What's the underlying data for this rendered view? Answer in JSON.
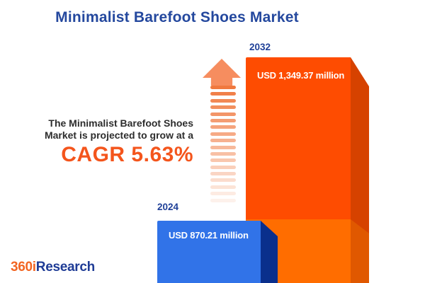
{
  "title": "Minimalist Barefoot Shoes Market",
  "annotation": {
    "line1": "The Minimalist Barefoot Shoes",
    "line2": "Market is projected to grow at a",
    "cagr": "CAGR 5.63%"
  },
  "chart_data": {
    "type": "bar",
    "title": "Minimalist Barefoot Shoes Market",
    "categories": [
      "2024",
      "2032"
    ],
    "values": [
      870.21,
      1349.37
    ],
    "unit": "USD million",
    "value_labels": [
      "USD 870.21 million",
      "USD 1,349.37 million"
    ],
    "cagr_percent": 5.63,
    "orientation": "vertical",
    "legend": "none",
    "axes": "none",
    "style": "3d-blocks",
    "bar_colors": [
      "#3173E8",
      "#FE4C01"
    ]
  },
  "logo": {
    "part1": "360i",
    "part2": "Research"
  },
  "icons": {
    "growth_arrow": "up-arrow-with-fading-stripes"
  },
  "colors": {
    "background": "#FFFFFF",
    "title_navy": "#24489E",
    "year_label_navy": "#1F4098",
    "text_dark": "#2D2D2D",
    "cagr_orange": "#F4551C",
    "bar2024_front": "#3173E8",
    "bar2024_side": "#0A2F8C",
    "bar2032_front_top": "#FE4C01",
    "bar2032_front_bottom": "#FF6D00",
    "bar2032_side_top": "#D64200",
    "bar2032_side_bottom": "#E05800",
    "arrow_head": "#F68D5F",
    "arrow_stripe": "#F0793F",
    "value_text": "#FFFFFF",
    "logo_orange": "#F26522",
    "logo_navy": "#1F3C96"
  }
}
